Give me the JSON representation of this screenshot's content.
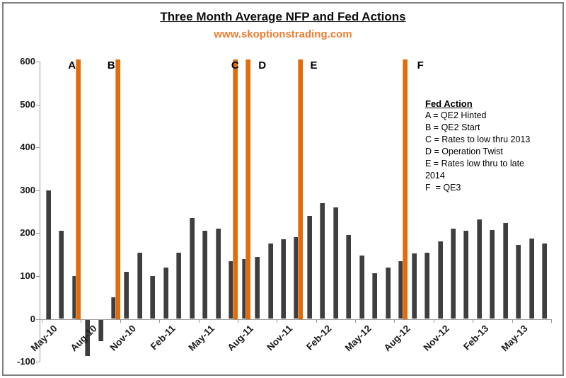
{
  "title": "Three Month Average NFP and Fed Actions",
  "subtitle": "www.skoptionstrading.com",
  "colors": {
    "bar": "#3E3E3E",
    "event_line": "#E36C0A",
    "subtitle_orange": "#ED7D31",
    "axis_gray": "#999999",
    "frame_gray": "#7F7F7F",
    "text": "#000000"
  },
  "legend": {
    "heading": "Fed Action",
    "lines": [
      "A = QE2 Hinted",
      "B = QE2 Start",
      "C = Rates to low thru 2013",
      "D = Operation Twist",
      "E = Rates low thru to late",
      "2014",
      "F  = QE3"
    ]
  },
  "chart_data": {
    "type": "bar",
    "title": "Three Month Average NFP and Fed Actions",
    "xlabel": "",
    "ylabel": "",
    "grid": false,
    "ylim": [
      -100,
      600
    ],
    "y_ticks": [
      600,
      500,
      400,
      300,
      200,
      100,
      0,
      -100
    ],
    "x_tick_label_interval": 3,
    "x_tick_labels_shown": [
      "May-10",
      "Aug-10",
      "Nov-10",
      "Feb-11",
      "May-11",
      "Aug-11",
      "Nov-11",
      "Feb-12",
      "May-12",
      "Aug-12",
      "Nov-12",
      "Feb-13",
      "May-13"
    ],
    "categories": [
      "May-10",
      "Jun-10",
      "Jul-10",
      "Aug-10",
      "Sep-10",
      "Oct-10",
      "Nov-10",
      "Dec-10",
      "Jan-11",
      "Feb-11",
      "Mar-11",
      "Apr-11",
      "May-11",
      "Jun-11",
      "Jul-11",
      "Aug-11",
      "Sep-11",
      "Oct-11",
      "Nov-11",
      "Dec-11",
      "Jan-12",
      "Feb-12",
      "Mar-12",
      "Apr-12",
      "May-12",
      "Jun-12",
      "Jul-12",
      "Aug-12",
      "Sep-12",
      "Oct-12",
      "Nov-12",
      "Dec-12",
      "Jan-13",
      "Feb-13",
      "Mar-13",
      "Apr-13",
      "May-13",
      "Jun-13",
      "Jul-13"
    ],
    "values": [
      300,
      205,
      100,
      -85,
      -50,
      50,
      110,
      155,
      100,
      120,
      155,
      235,
      205,
      210,
      135,
      140,
      145,
      175,
      185,
      190,
      240,
      270,
      260,
      195,
      148,
      107,
      120,
      135,
      152,
      155,
      180,
      210,
      205,
      232,
      207,
      224,
      172,
      188,
      175
    ],
    "events": [
      {
        "letter": "A",
        "after_index": 2,
        "after_category": "Jul-10",
        "description": "QE2 Hinted"
      },
      {
        "letter": "B",
        "after_index": 5,
        "after_category": "Oct-10",
        "description": "QE2 Start"
      },
      {
        "letter": "C",
        "after_index": 14,
        "after_category": "Jul-11",
        "description": "Rates to low thru 2013"
      },
      {
        "letter": "D",
        "after_index": 15,
        "after_category": "Aug-11",
        "description": "Operation Twist"
      },
      {
        "letter": "E",
        "after_index": 19,
        "after_category": "Dec-11",
        "description": "Rates low thru to late 2014"
      },
      {
        "letter": "F",
        "after_index": 27,
        "after_category": "Aug-12",
        "description": "QE3"
      }
    ]
  }
}
